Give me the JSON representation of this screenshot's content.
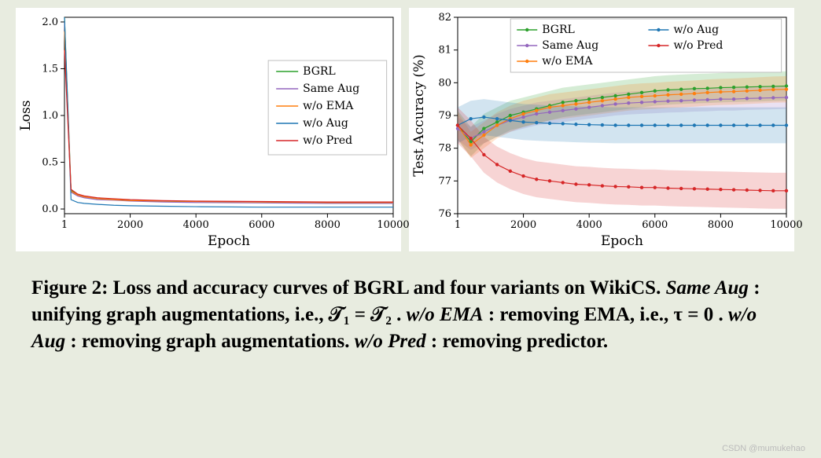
{
  "background_color": "#e8ece0",
  "chart_bg": "#ffffff",
  "label_fontsize": 17,
  "tick_fontsize": 13,
  "axis_color": "#000000",
  "loss_chart": {
    "type": "line",
    "xlabel": "Epoch",
    "ylabel": "Loss",
    "xlim": [
      1,
      10000
    ],
    "ylim": [
      -0.05,
      2.05
    ],
    "xticks": [
      1,
      2000,
      4000,
      6000,
      8000,
      10000
    ],
    "yticks": [
      0.0,
      0.5,
      1.0,
      1.5,
      2.0
    ],
    "legend_pos": "right-mid",
    "series": [
      {
        "name": "BGRL",
        "color": "#2ca02c",
        "x": [
          1,
          200,
          400,
          600,
          1000,
          1500,
          2000,
          3000,
          4000,
          6000,
          8000,
          10000
        ],
        "y": [
          2.05,
          0.2,
          0.15,
          0.13,
          0.11,
          0.1,
          0.09,
          0.08,
          0.08,
          0.075,
          0.07,
          0.07
        ]
      },
      {
        "name": "Same Aug",
        "color": "#9467bd",
        "x": [
          1,
          200,
          400,
          600,
          1000,
          1500,
          2000,
          3000,
          4000,
          6000,
          8000,
          10000
        ],
        "y": [
          2.0,
          0.18,
          0.14,
          0.12,
          0.1,
          0.095,
          0.085,
          0.075,
          0.07,
          0.065,
          0.06,
          0.06
        ]
      },
      {
        "name": "w/o EMA",
        "color": "#ff7f0e",
        "x": [
          1,
          200,
          400,
          600,
          1000,
          1500,
          2000,
          3000,
          4000,
          6000,
          8000,
          10000
        ],
        "y": [
          1.9,
          0.19,
          0.15,
          0.13,
          0.11,
          0.1,
          0.09,
          0.085,
          0.08,
          0.075,
          0.07,
          0.07
        ]
      },
      {
        "name": "w/o Aug",
        "color": "#1f77b4",
        "x": [
          1,
          200,
          400,
          600,
          1000,
          1500,
          2000,
          3000,
          4000,
          6000,
          8000,
          10000
        ],
        "y": [
          2.05,
          0.1,
          0.07,
          0.06,
          0.05,
          0.04,
          0.035,
          0.03,
          0.025,
          0.02,
          0.02,
          0.02
        ]
      },
      {
        "name": "w/o Pred",
        "color": "#d62728",
        "x": [
          1,
          200,
          400,
          600,
          1000,
          1500,
          2000,
          3000,
          4000,
          6000,
          8000,
          10000
        ],
        "y": [
          1.7,
          0.21,
          0.16,
          0.14,
          0.12,
          0.11,
          0.1,
          0.09,
          0.085,
          0.08,
          0.075,
          0.075
        ]
      }
    ],
    "line_width": 1.2
  },
  "acc_chart": {
    "type": "line-band",
    "xlabel": "Epoch",
    "ylabel": "Test Accuracy (%)",
    "xlim": [
      1,
      10000
    ],
    "ylim": [
      76,
      82
    ],
    "xticks": [
      1,
      2000,
      4000,
      6000,
      8000,
      10000
    ],
    "yticks": [
      76,
      77,
      78,
      79,
      80,
      81,
      82
    ],
    "legend_pos": "top",
    "band_opacity": 0.2,
    "marker": "dot",
    "marker_size": 2.2,
    "series": [
      {
        "name": "BGRL",
        "color": "#2ca02c",
        "x": [
          1,
          400,
          800,
          1200,
          1600,
          2000,
          2400,
          2800,
          3200,
          3600,
          4000,
          4400,
          4800,
          5200,
          5600,
          6000,
          6400,
          6800,
          7200,
          7600,
          8000,
          8400,
          8800,
          9200,
          9600,
          10000
        ],
        "y": [
          78.7,
          78.2,
          78.6,
          78.8,
          79.0,
          79.1,
          79.2,
          79.3,
          79.4,
          79.45,
          79.5,
          79.55,
          79.6,
          79.65,
          79.7,
          79.75,
          79.78,
          79.8,
          79.82,
          79.83,
          79.85,
          79.86,
          79.87,
          79.88,
          79.89,
          79.9
        ],
        "band": 0.45
      },
      {
        "name": "Same Aug",
        "color": "#9467bd",
        "x": [
          1,
          400,
          800,
          1200,
          1600,
          2000,
          2400,
          2800,
          3200,
          3600,
          4000,
          4400,
          4800,
          5200,
          5600,
          6000,
          6400,
          6800,
          7200,
          7600,
          8000,
          8400,
          8800,
          9200,
          9600,
          10000
        ],
        "y": [
          78.6,
          78.3,
          78.5,
          78.7,
          78.85,
          78.95,
          79.05,
          79.1,
          79.15,
          79.2,
          79.25,
          79.3,
          79.35,
          79.38,
          79.4,
          79.42,
          79.44,
          79.45,
          79.47,
          79.48,
          79.5,
          79.5,
          79.52,
          79.53,
          79.54,
          79.55
        ],
        "band": 0.35
      },
      {
        "name": "w/o EMA",
        "color": "#ff7f0e",
        "x": [
          1,
          400,
          800,
          1200,
          1600,
          2000,
          2400,
          2800,
          3200,
          3600,
          4000,
          4400,
          4800,
          5200,
          5600,
          6000,
          6400,
          6800,
          7200,
          7600,
          8000,
          8400,
          8800,
          9200,
          9600,
          10000
        ],
        "y": [
          78.7,
          78.1,
          78.4,
          78.7,
          78.9,
          79.05,
          79.15,
          79.25,
          79.3,
          79.35,
          79.4,
          79.45,
          79.5,
          79.55,
          79.58,
          79.6,
          79.63,
          79.65,
          79.67,
          79.7,
          79.72,
          79.73,
          79.75,
          79.77,
          79.79,
          79.8
        ],
        "band": 0.4
      },
      {
        "name": "w/o Aug",
        "color": "#1f77b4",
        "x": [
          1,
          400,
          800,
          1200,
          1600,
          2000,
          2400,
          2800,
          3200,
          3600,
          4000,
          4400,
          4800,
          5200,
          5600,
          6000,
          6400,
          6800,
          7200,
          7600,
          8000,
          8400,
          8800,
          9200,
          9600,
          10000
        ],
        "y": [
          78.7,
          78.9,
          78.95,
          78.9,
          78.85,
          78.8,
          78.78,
          78.76,
          78.75,
          78.73,
          78.72,
          78.71,
          78.7,
          78.7,
          78.7,
          78.7,
          78.7,
          78.7,
          78.7,
          78.7,
          78.7,
          78.7,
          78.7,
          78.7,
          78.7,
          78.7
        ],
        "band": 0.55
      },
      {
        "name": "w/o Pred",
        "color": "#d62728",
        "x": [
          1,
          400,
          800,
          1200,
          1600,
          2000,
          2400,
          2800,
          3200,
          3600,
          4000,
          4400,
          4800,
          5200,
          5600,
          6000,
          6400,
          6800,
          7200,
          7600,
          8000,
          8400,
          8800,
          9200,
          9600,
          10000
        ],
        "y": [
          78.7,
          78.3,
          77.8,
          77.5,
          77.3,
          77.15,
          77.05,
          77.0,
          76.95,
          76.9,
          76.88,
          76.85,
          76.83,
          76.82,
          76.8,
          76.8,
          76.78,
          76.77,
          76.76,
          76.75,
          76.74,
          76.73,
          76.72,
          76.71,
          76.7,
          76.7
        ],
        "band": 0.55
      }
    ],
    "line_width": 1.2
  },
  "caption_parts": {
    "p0": "Figure 2: Loss and accuracy curves of BGRL and four variants on WikiCS. ",
    "p1": "Same Aug",
    "p2": ": unifying graph augmentations, i.e., ",
    "p3": "𝒯₁ = 𝒯₂",
    "p4": ". ",
    "p5": "w/o EMA",
    "p6": ": removing EMA, i.e., ",
    "p7": "τ = 0",
    "p8": ". ",
    "p9": "w/o Aug",
    "p10": ": removing graph augmentations. ",
    "p11": "w/o Pred",
    "p12": ": removing predictor."
  },
  "watermark": "CSDN @mumukehao"
}
